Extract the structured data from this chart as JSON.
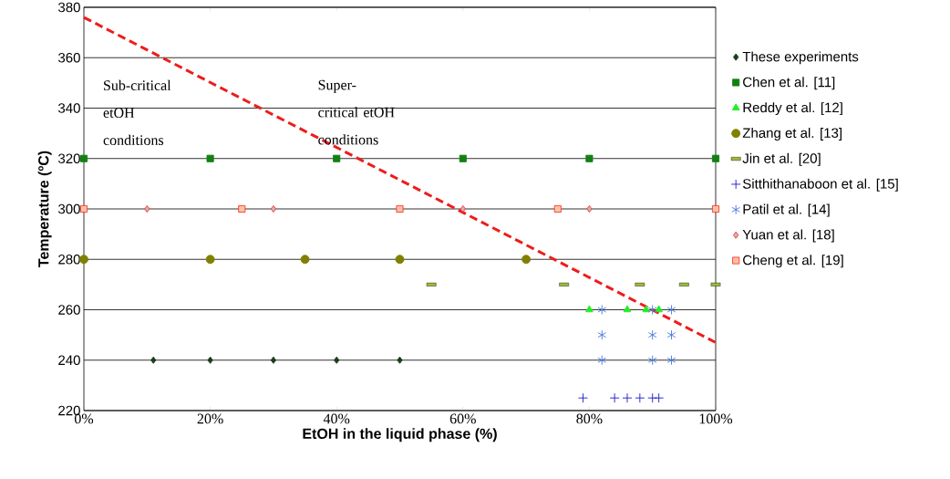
{
  "chart_data": {
    "type": "scatter",
    "xlabel": "EtOH in the liquid phase (%)",
    "ylabel": "Temperature (ºC)",
    "xlim": [
      0,
      100
    ],
    "ylim": [
      220,
      380
    ],
    "xticks": [
      {
        "value": 0,
        "label": "0%"
      },
      {
        "value": 20,
        "label": "20%"
      },
      {
        "value": 40,
        "label": "40%"
      },
      {
        "value": 60,
        "label": "60%"
      },
      {
        "value": 80,
        "label": "80%"
      },
      {
        "value": 100,
        "label": "100%"
      }
    ],
    "yticks": [
      220,
      240,
      260,
      280,
      300,
      320,
      340,
      360,
      380
    ],
    "grid": "y",
    "legend": "right",
    "annotations": [
      "Sub-critical etOH conditions",
      "Super-critical etOH conditions"
    ],
    "series": [
      {
        "name": "These experiments",
        "color": "#1a3d1a",
        "marker": "diamond",
        "x": [
          11,
          20,
          30,
          40,
          50
        ],
        "values": [
          240,
          240,
          240,
          240,
          240
        ]
      },
      {
        "name": "Chen et al. [11]",
        "color": "#128012",
        "marker": "square",
        "x": [
          0,
          20,
          40,
          60,
          80,
          100
        ],
        "values": [
          320,
          320,
          320,
          320,
          320,
          320
        ]
      },
      {
        "name": "Reddy et al. [12]",
        "color": "#22ee22",
        "marker": "triangle",
        "x": [
          80,
          86,
          89,
          91
        ],
        "values": [
          260,
          260,
          260,
          260
        ]
      },
      {
        "name": "Zhang et al. [13]",
        "color": "#808000",
        "marker": "circle",
        "x": [
          0,
          20,
          35,
          50,
          70
        ],
        "values": [
          280,
          280,
          280,
          280,
          280
        ]
      },
      {
        "name": "Jin et al. [20]",
        "color": "#99bb33",
        "x": [
          55,
          76,
          88,
          95,
          100
        ],
        "values": [
          270,
          270,
          270,
          270,
          270
        ]
      },
      {
        "name": "Sitthithanaboon et al. [15]",
        "color": "#1a1acc",
        "marker": "cross",
        "x": [
          79,
          84,
          86,
          88,
          90,
          91
        ],
        "values": [
          225,
          225,
          225,
          225,
          225,
          225
        ]
      },
      {
        "name": "Patil et al. [14]",
        "color": "#4477dd",
        "marker": "cross",
        "x": [
          82,
          82,
          82,
          90,
          90,
          90,
          93,
          93,
          93
        ],
        "values": [
          260,
          250,
          240,
          260,
          250,
          240,
          260,
          250,
          240
        ]
      },
      {
        "name": "Yuan et al. [18]",
        "color": "#c8b4b4",
        "marker": "diamond",
        "x": [
          10,
          30,
          60,
          80
        ],
        "values": [
          300,
          300,
          300,
          300
        ]
      },
      {
        "name": "Cheng et al. [19]",
        "color": "#fbc4a0",
        "marker": "square",
        "x": [
          0,
          25,
          50,
          75,
          100
        ],
        "values": [
          300,
          300,
          300,
          300,
          300
        ]
      },
      {
        "type": "line",
        "color": "#ee1c1c",
        "line_style": "dashed",
        "marker": "none",
        "x": [
          0,
          100
        ],
        "values": [
          376,
          247
        ]
      }
    ]
  }
}
